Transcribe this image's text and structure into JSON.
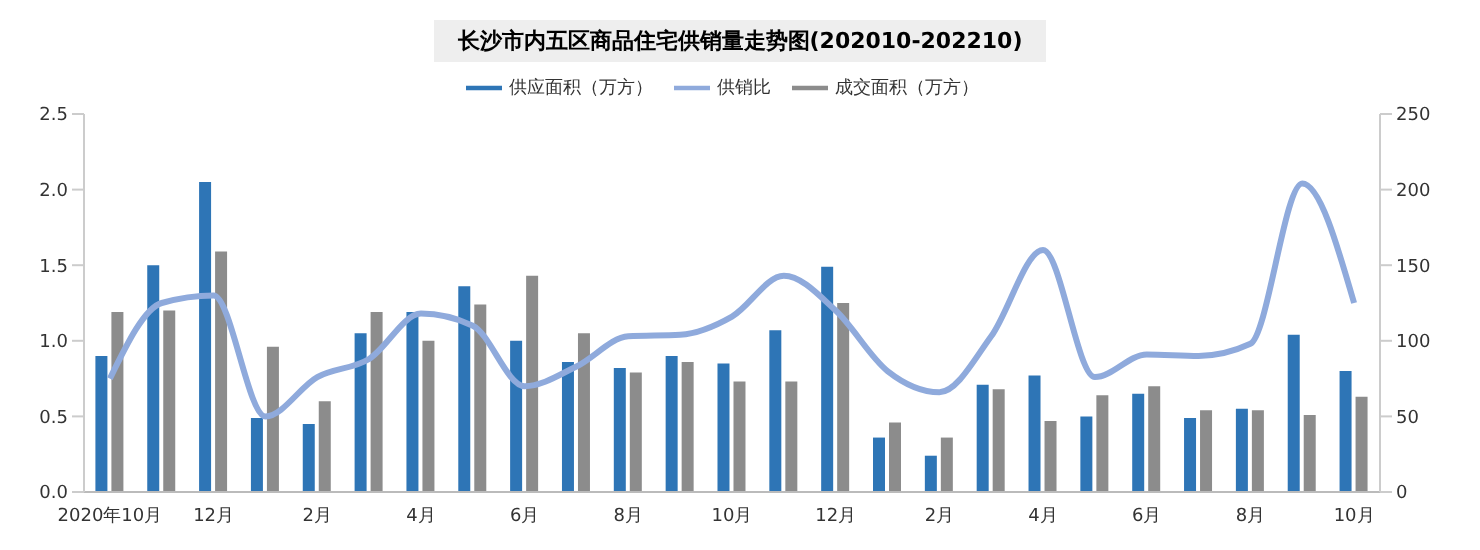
{
  "chart_data": {
    "type": "bar",
    "title": "长沙市内五区商品住宅供销量走势图(202010-202210)",
    "categories": [
      "2020年10月",
      null,
      "12月",
      null,
      "2月",
      null,
      "4月",
      null,
      "6月",
      null,
      "8月",
      null,
      "10月",
      null,
      "12月",
      null,
      "2月",
      null,
      "4月",
      null,
      "6月",
      null,
      "8月",
      null,
      "10月"
    ],
    "series": [
      {
        "name": "供应面积（万方）",
        "color": "#2e75b6",
        "values": [
          0.9,
          1.5,
          2.05,
          0.49,
          0.45,
          1.05,
          1.19,
          1.36,
          1.0,
          0.86,
          0.82,
          0.9,
          0.85,
          1.07,
          1.49,
          0.36,
          0.24,
          0.71,
          0.77,
          0.5,
          0.65,
          0.49,
          0.55,
          1.04,
          0.8
        ]
      },
      {
        "name": "成交面积（万方）",
        "color": "#8c8c8c",
        "values": [
          1.19,
          1.2,
          1.59,
          0.96,
          0.6,
          1.19,
          1.0,
          1.24,
          1.43,
          1.05,
          0.79,
          0.86,
          0.73,
          0.73,
          1.25,
          0.46,
          0.36,
          0.68,
          0.47,
          0.64,
          0.7,
          0.54,
          0.54,
          0.51,
          0.63
        ]
      },
      {
        "name": "供销比",
        "type": "line",
        "axis": "y2",
        "color": "#8faadc",
        "values": [
          75,
          125,
          130,
          50,
          76,
          88,
          118,
          110,
          70,
          83,
          103,
          104,
          116,
          143,
          120,
          80,
          66,
          103,
          160,
          76,
          91,
          90,
          98,
          204,
          125
        ]
      }
    ],
    "ylim": [
      0,
      2.5
    ],
    "yticks": [
      {
        "value": 0,
        "label": "0.0"
      },
      {
        "value": 0.5,
        "label": "0.5"
      },
      {
        "value": 1,
        "label": "1.0"
      },
      {
        "value": 1.5,
        "label": "1.5"
      },
      {
        "value": 2,
        "label": "2.0"
      },
      {
        "value": 2.5,
        "label": "2.5"
      }
    ],
    "y2lim": [
      0,
      250
    ],
    "y2ticks": [
      0,
      50,
      100,
      150,
      200,
      250
    ],
    "grid": false,
    "legend": "top",
    "marker": "none",
    "line_style": "solid"
  }
}
